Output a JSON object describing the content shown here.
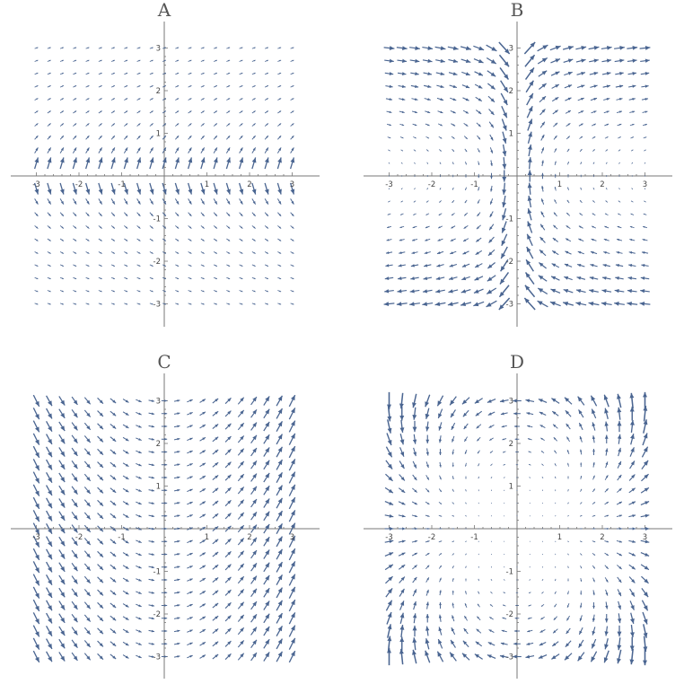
{
  "chart_data": [
    {
      "type": "vector-field",
      "title": "A",
      "field": "A",
      "xlim": [
        -3.2,
        3.2
      ],
      "ylim": [
        -3.5,
        3.5
      ],
      "xticks": [
        -3,
        -2,
        -1,
        1,
        2,
        3
      ],
      "yticks": [
        -3,
        -2,
        -1,
        1,
        2,
        3
      ],
      "xtick_labels": [
        "-3",
        "-2",
        "-1",
        "1",
        "2",
        "3"
      ],
      "ytick_labels": [
        "-3",
        "-2",
        "-1",
        "1",
        "2",
        "3"
      ],
      "grid_range": [
        -3,
        3
      ],
      "grid_count": 21,
      "grid": false,
      "arrow_color": "#4a6591"
    },
    {
      "type": "vector-field",
      "title": "B",
      "field": "B",
      "xlim": [
        -3.2,
        3.2
      ],
      "ylim": [
        -3.5,
        3.5
      ],
      "xticks": [
        -3,
        -2,
        -1,
        1,
        2,
        3
      ],
      "yticks": [
        -3,
        -2,
        -1,
        1,
        2,
        3
      ],
      "xtick_labels": [
        "-3",
        "-2",
        "-1",
        "1",
        "2",
        "3"
      ],
      "ytick_labels": [
        "-3",
        "-2",
        "-1",
        "1",
        "2",
        "3"
      ],
      "grid_range": [
        -3,
        3
      ],
      "grid_count": 21,
      "grid": false,
      "arrow_color": "#4a6591"
    },
    {
      "type": "vector-field",
      "title": "C",
      "field": "C",
      "xlim": [
        -3.2,
        3.2
      ],
      "ylim": [
        -3.5,
        3.5
      ],
      "xticks": [
        -3,
        -2,
        -1,
        1,
        2,
        3
      ],
      "yticks": [
        -3,
        -2,
        -1,
        1,
        2,
        3
      ],
      "xtick_labels": [
        "-3",
        "-2",
        "-1",
        "1",
        "2",
        "3"
      ],
      "ytick_labels": [
        "-3",
        "-2",
        "-1",
        "1",
        "2",
        "3"
      ],
      "grid_range": [
        -3,
        3
      ],
      "grid_count": 21,
      "grid": false,
      "arrow_color": "#4a6591"
    },
    {
      "type": "vector-field",
      "title": "D",
      "field": "D",
      "xlim": [
        -3.2,
        3.2
      ],
      "ylim": [
        -3.5,
        3.5
      ],
      "xticks": [
        -3,
        -2,
        -1,
        1,
        2,
        3
      ],
      "yticks": [
        -3,
        -2,
        -1,
        1,
        2,
        3
      ],
      "xtick_labels": [
        "-3",
        "-2",
        "-1",
        "1",
        "2",
        "3"
      ],
      "ytick_labels": [
        "-3",
        "-2",
        "-1",
        "1",
        "2",
        "3"
      ],
      "grid_range": [
        -3,
        3
      ],
      "grid_count": 21,
      "grid": false,
      "arrow_color": "#4a6591"
    }
  ]
}
